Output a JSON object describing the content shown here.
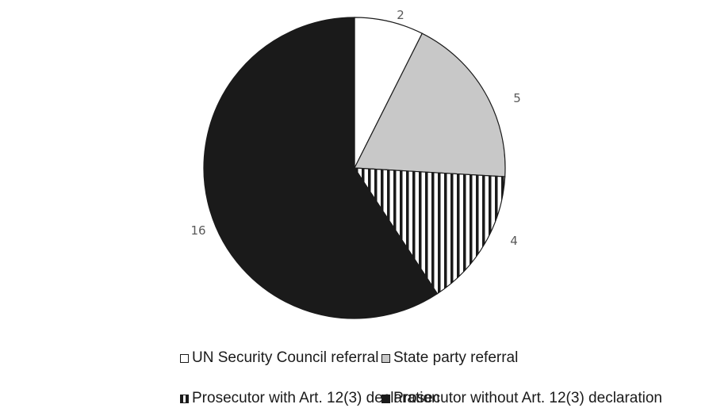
{
  "chart_data": {
    "type": "pie",
    "title": "",
    "start_angle_deg": 0,
    "direction": "clockwise",
    "slices": [
      {
        "label": "UN Security Council referral",
        "value": 2,
        "data_label": "2",
        "fill": "#ffffff",
        "pattern": "none"
      },
      {
        "label": "State party referral",
        "value": 5,
        "data_label": "5",
        "fill": "#c8c8c8",
        "pattern": "none"
      },
      {
        "label": "Prosecutor with Art. 12(3) declaration",
        "value": 4,
        "data_label": "4",
        "fill": "#ffffff",
        "pattern": "vertical-stripes"
      },
      {
        "label": "Prosecutor without Art. 12(3) declaration",
        "value": 16,
        "data_label": "16",
        "fill": "#1a1a1a",
        "pattern": "none"
      }
    ],
    "legend": {
      "placement": "bottom",
      "items": [
        "UN Security Council referral",
        "State party referral",
        "Prosecutor with Art. 12(3) declaration",
        "Prosecutor without Art. 12(3) declaration"
      ]
    },
    "colors": {
      "outline": "#1a1a1a",
      "label_text": "#595959",
      "stripe": "#1a1a1a"
    }
  }
}
